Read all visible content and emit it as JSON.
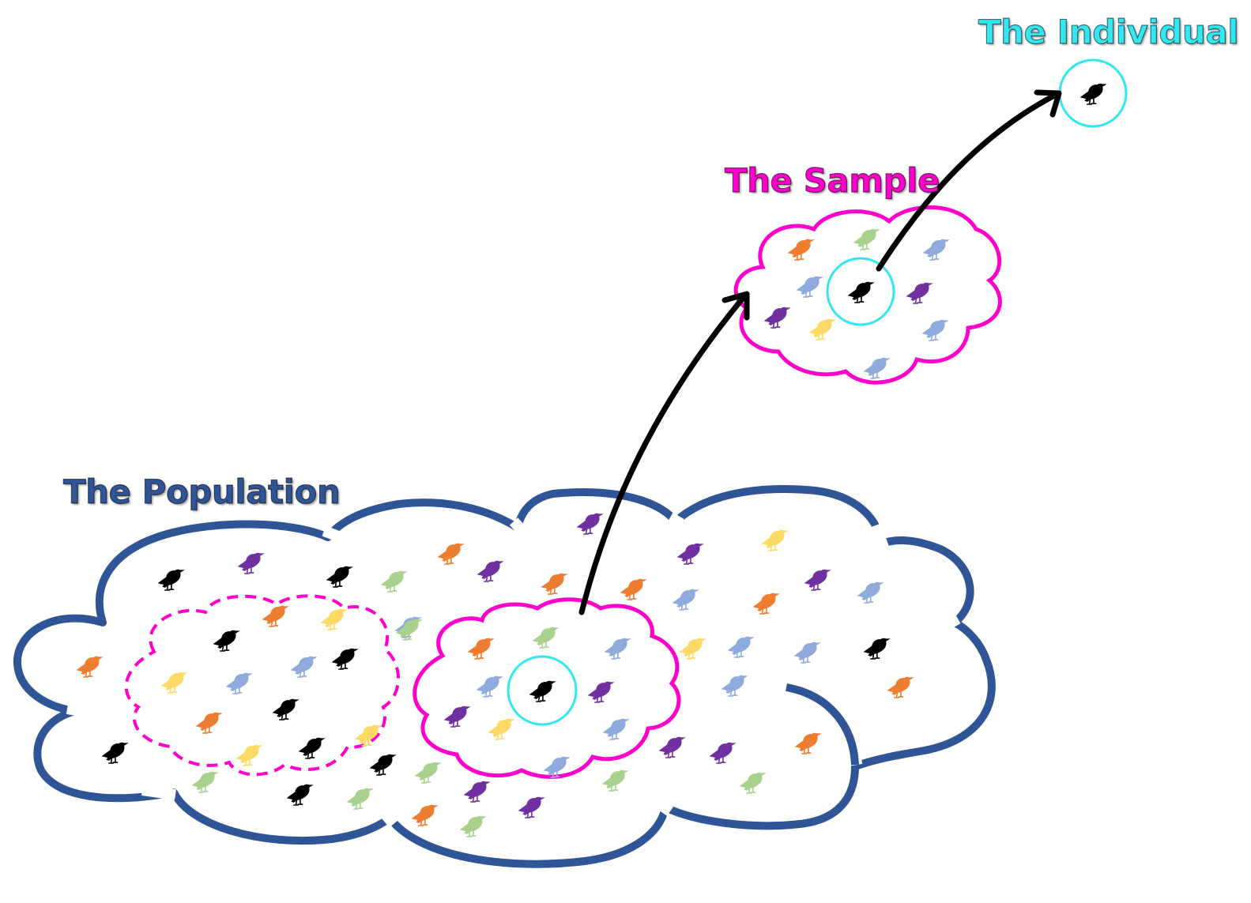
{
  "labels": {
    "population": "The Population",
    "sample": "The Sample",
    "individual": "The Individual"
  },
  "colors": {
    "population": "#2F5597",
    "sample": "#FF00CC",
    "individual": "#33E6F0",
    "arrow": "#000000",
    "bird_black": "#000000",
    "bird_purple": "#7030A0",
    "bird_orange": "#ED7D31",
    "bird_yellow": "#FFD966",
    "bird_green": "#A9D18E",
    "bird_blue": "#8FAADC"
  },
  "icons": {
    "bird": "bird-icon",
    "arrow": "curved-arrow-icon"
  },
  "population_bird_colors": [
    "black",
    "purple",
    "black",
    "green",
    "orange",
    "purple",
    "orange",
    "purple",
    "orange",
    "purple",
    "yellow",
    "blue",
    "orange",
    "purple",
    "blue",
    "black",
    "orange",
    "blue",
    "blue",
    "blue",
    "yellow",
    "orange",
    "black",
    "orange",
    "blue",
    "blue",
    "yellow",
    "black",
    "yellow",
    "orange",
    "black",
    "black",
    "yellow",
    "black",
    "black",
    "yellow",
    "blue",
    "green",
    "black",
    "green",
    "green",
    "orange",
    "green",
    "purple",
    "purple",
    "green",
    "purple",
    "purple",
    "orange",
    "green",
    "yellow",
    "green"
  ],
  "sample_cloud_bird_colors": [
    "orange",
    "green",
    "blue",
    "blue",
    "purple",
    "purple",
    "yellow",
    "blue",
    "blue"
  ],
  "sample_bird_colors": [
    "orange",
    "green",
    "blue",
    "blue",
    "purple",
    "purple",
    "yellow",
    "blue",
    "blue"
  ],
  "individual_bird_color": "black"
}
